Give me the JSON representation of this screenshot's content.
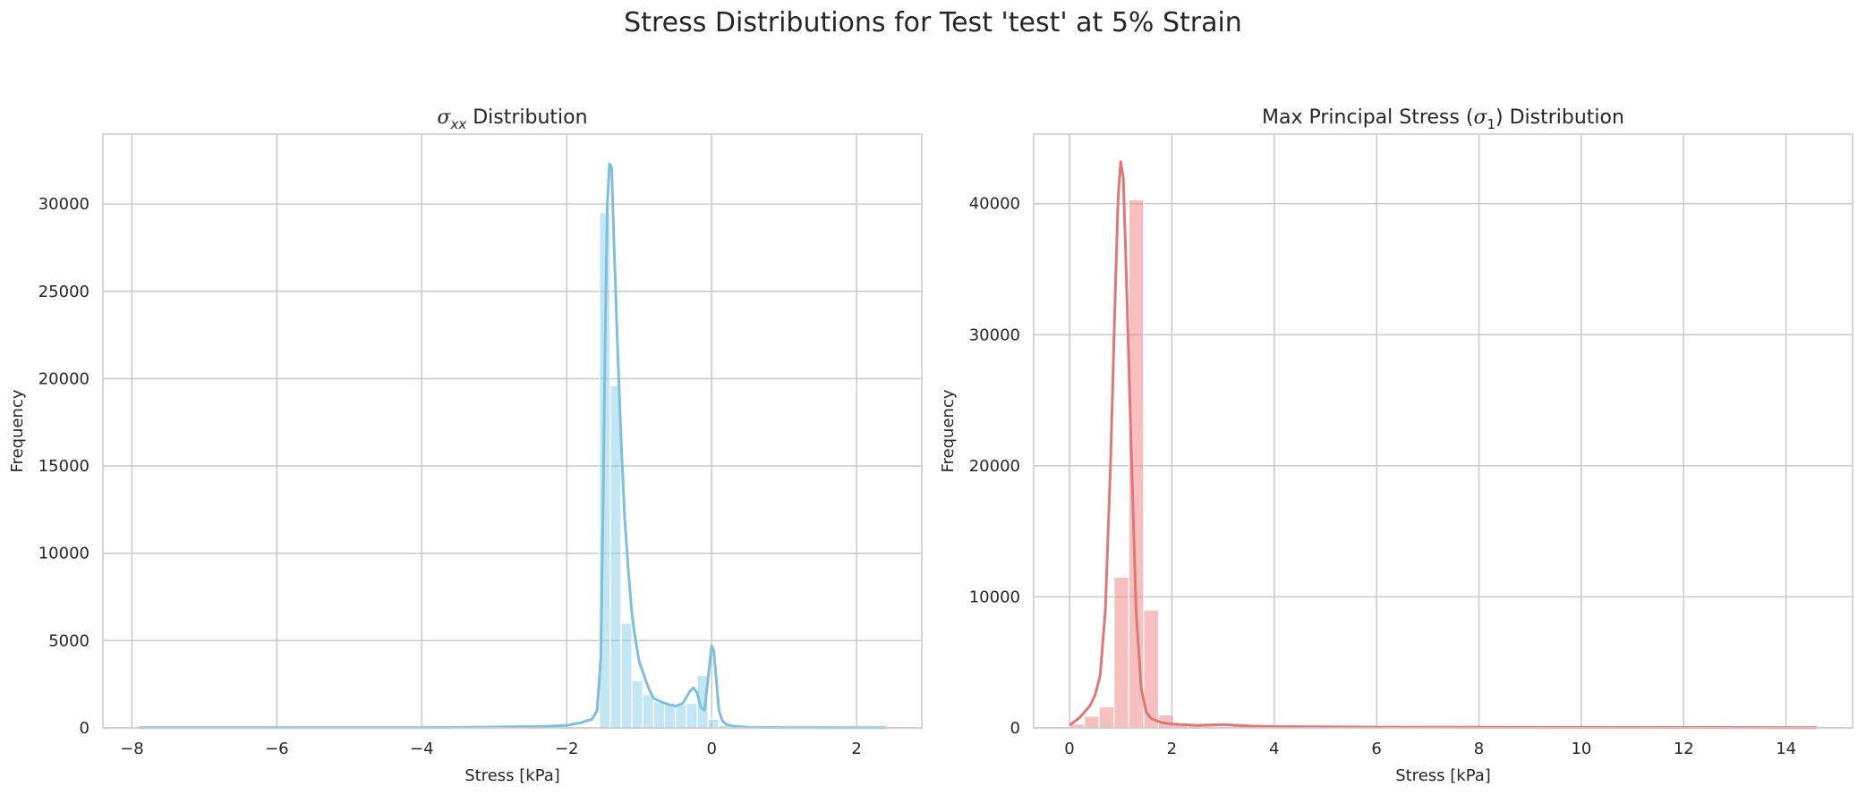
{
  "figure_title": "Stress Distributions for Test 'test' at 5% Strain",
  "chart_data": [
    {
      "type": "bar",
      "subtype": "histogram_with_kde",
      "title": "σ_xx Distribution",
      "title_symbol": "σ",
      "title_subscript": "xx",
      "title_rest": "Distribution",
      "xlabel": "Stress [kPa]",
      "ylabel": "Frequency",
      "xlim": [
        -8.4,
        2.9
      ],
      "ylim": [
        0,
        34000
      ],
      "xticks": [
        -8,
        -6,
        -4,
        -2,
        0,
        2
      ],
      "yticks": [
        0,
        5000,
        10000,
        15000,
        20000,
        25000,
        30000
      ],
      "grid": true,
      "color": "#87CEEB",
      "bin_edges": [
        -1.55,
        -1.4,
        -1.25,
        -1.1,
        -0.95,
        -0.8,
        -0.65,
        -0.5,
        -0.35,
        -0.2,
        -0.05,
        0.1,
        0.25,
        0.4
      ],
      "counts": [
        29500,
        19600,
        6000,
        2700,
        1900,
        1500,
        1400,
        1300,
        1400,
        3000,
        500,
        150,
        60
      ],
      "kde": {
        "x": [
          -7.9,
          -6.0,
          -4.0,
          -3.0,
          -2.3,
          -2.0,
          -1.8,
          -1.65,
          -1.58,
          -1.53,
          -1.5,
          -1.47,
          -1.44,
          -1.41,
          -1.38,
          -1.35,
          -1.3,
          -1.25,
          -1.2,
          -1.15,
          -1.1,
          -1.05,
          -1.0,
          -0.95,
          -0.9,
          -0.85,
          -0.8,
          -0.75,
          -0.7,
          -0.6,
          -0.5,
          -0.4,
          -0.3,
          -0.25,
          -0.2,
          -0.15,
          -0.1,
          -0.05,
          0.0,
          0.03,
          0.07,
          0.1,
          0.15,
          0.2,
          0.3,
          0.5,
          1.0,
          2.4
        ],
        "y": [
          20,
          20,
          20,
          50,
          90,
          150,
          300,
          500,
          1000,
          4000,
          12000,
          22000,
          30000,
          32300,
          32100,
          28000,
          22000,
          16500,
          12000,
          9000,
          6500,
          5000,
          3800,
          3200,
          2600,
          2100,
          1700,
          1600,
          1500,
          1350,
          1250,
          1400,
          2100,
          2300,
          2000,
          1200,
          1000,
          2800,
          4700,
          4400,
          2500,
          1000,
          400,
          200,
          100,
          40,
          20,
          10
        ]
      }
    },
    {
      "type": "bar",
      "subtype": "histogram_with_kde",
      "title": "Max Principal Stress (σ_1) Distribution",
      "title_prefix": "Max Principal Stress (",
      "title_symbol": "σ",
      "title_subscript": "1",
      "title_suffix": ") Distribution",
      "xlabel": "Stress [kPa]",
      "ylabel": "Frequency",
      "xlim": [
        -0.7,
        15.3
      ],
      "ylim": [
        0,
        45300
      ],
      "xticks": [
        0,
        2,
        4,
        6,
        8,
        10,
        12,
        14
      ],
      "yticks": [
        0,
        10000,
        20000,
        30000,
        40000
      ],
      "grid": true,
      "color": "#F08080",
      "bin_edges": [
        0.0,
        0.29,
        0.58,
        0.87,
        1.16,
        1.45,
        1.74,
        2.03,
        2.32,
        2.61,
        2.9,
        3.19,
        3.48,
        3.77
      ],
      "counts": [
        300,
        900,
        1600,
        11500,
        40300,
        9000,
        1000,
        400,
        250,
        150,
        130,
        150,
        100
      ],
      "kde": {
        "x": [
          0.0,
          0.2,
          0.4,
          0.5,
          0.6,
          0.7,
          0.8,
          0.9,
          0.95,
          1.0,
          1.05,
          1.1,
          1.2,
          1.3,
          1.4,
          1.5,
          1.6,
          1.8,
          2.0,
          2.5,
          3.0,
          3.5,
          4.0,
          6.0,
          10.0,
          14.6
        ],
        "y": [
          200,
          800,
          1700,
          2500,
          4000,
          9000,
          20000,
          34000,
          40500,
          43200,
          42000,
          36000,
          22000,
          9000,
          3000,
          1200,
          700,
          400,
          300,
          200,
          250,
          150,
          100,
          60,
          40,
          20
        ]
      }
    }
  ]
}
